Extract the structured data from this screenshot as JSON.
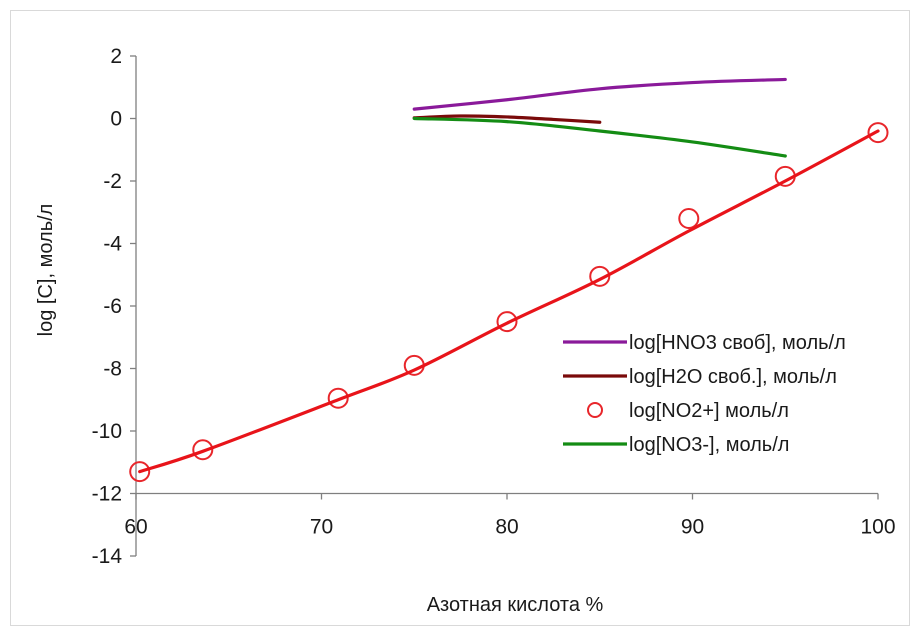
{
  "chart_data": {
    "type": "line",
    "xlabel": "Азотная кислота %",
    "ylabel": "log [C], моль/л",
    "xlim": [
      60,
      100
    ],
    "ylim": [
      -14,
      2
    ],
    "x_ticks": [
      60,
      70,
      80,
      90,
      100
    ],
    "y_ticks": [
      2,
      0,
      -2,
      -4,
      -6,
      -8,
      -10,
      -12,
      -14
    ],
    "grid": false,
    "legend_position": "right",
    "series": [
      {
        "name": "log[HNO3 своб], моль/л",
        "style": "line",
        "color": "#8a1a9a",
        "x": [
          75,
          80,
          85,
          90,
          95
        ],
        "y": [
          0.3,
          0.6,
          0.95,
          1.15,
          1.25
        ]
      },
      {
        "name": "log[H2O своб.], моль/л",
        "style": "line",
        "color": "#7a0a0a",
        "x": [
          75,
          77.5,
          80,
          82.5,
          85
        ],
        "y": [
          0.02,
          0.08,
          0.05,
          -0.03,
          -0.12
        ]
      },
      {
        "name": "log[NO2+] моль/л",
        "style": "markers",
        "color": "#e8262b",
        "x": [
          60.2,
          63.6,
          70.9,
          75,
          80,
          85,
          89.8,
          95,
          100
        ],
        "y": [
          -11.3,
          -10.6,
          -8.95,
          -7.9,
          -6.5,
          -5.05,
          -3.2,
          -1.85,
          -0.45
        ]
      },
      {
        "name": "log[NO3-], моль/л",
        "style": "line",
        "color": "#148c14",
        "x": [
          75,
          80,
          85,
          90,
          95
        ],
        "y": [
          0.0,
          -0.1,
          -0.4,
          -0.75,
          -1.2
        ]
      },
      {
        "name": "",
        "style": "line",
        "color": "#e8141a",
        "x": [
          60.2,
          63.6,
          70.9,
          75,
          80,
          85,
          89.8,
          95,
          100
        ],
        "y": [
          -11.3,
          -10.65,
          -9.0,
          -8.05,
          -6.55,
          -5.15,
          -3.6,
          -2.0,
          -0.4
        ]
      }
    ]
  }
}
